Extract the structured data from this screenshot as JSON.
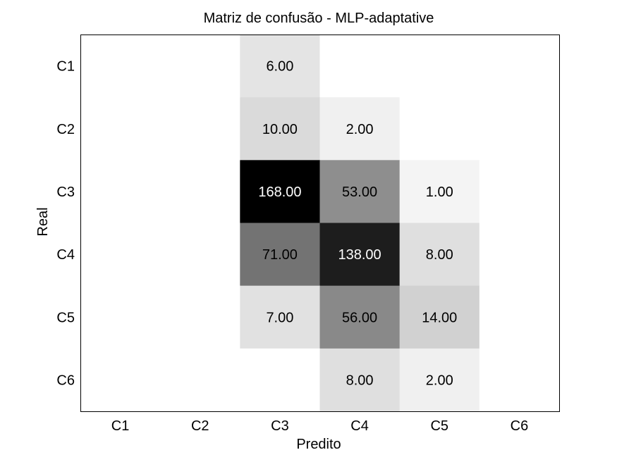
{
  "chart_data": {
    "type": "heatmap",
    "title": "Matriz de confusão - MLP-adaptative",
    "xlabel": "Predito",
    "ylabel": "Real",
    "x_categories": [
      "C1",
      "C2",
      "C3",
      "C4",
      "C5",
      "C6"
    ],
    "y_categories": [
      "C1",
      "C2",
      "C3",
      "C4",
      "C5",
      "C6"
    ],
    "values": [
      [
        0,
        0,
        6,
        0,
        0,
        0
      ],
      [
        0,
        0,
        10,
        2,
        0,
        0
      ],
      [
        0,
        0,
        168,
        53,
        1,
        0
      ],
      [
        0,
        0,
        71,
        138,
        8,
        0
      ],
      [
        0,
        0,
        7,
        56,
        14,
        0
      ],
      [
        0,
        0,
        0,
        8,
        2,
        0
      ]
    ],
    "colormap": "white-to-black (darker = higher count)",
    "cell_labels_format": "two decimals, zero cells unlabeled",
    "colors": {
      "low": "#ffffff",
      "high": "#000000",
      "text_dark": "#000000",
      "text_light": "#ffffff",
      "frame": "#000000"
    }
  }
}
